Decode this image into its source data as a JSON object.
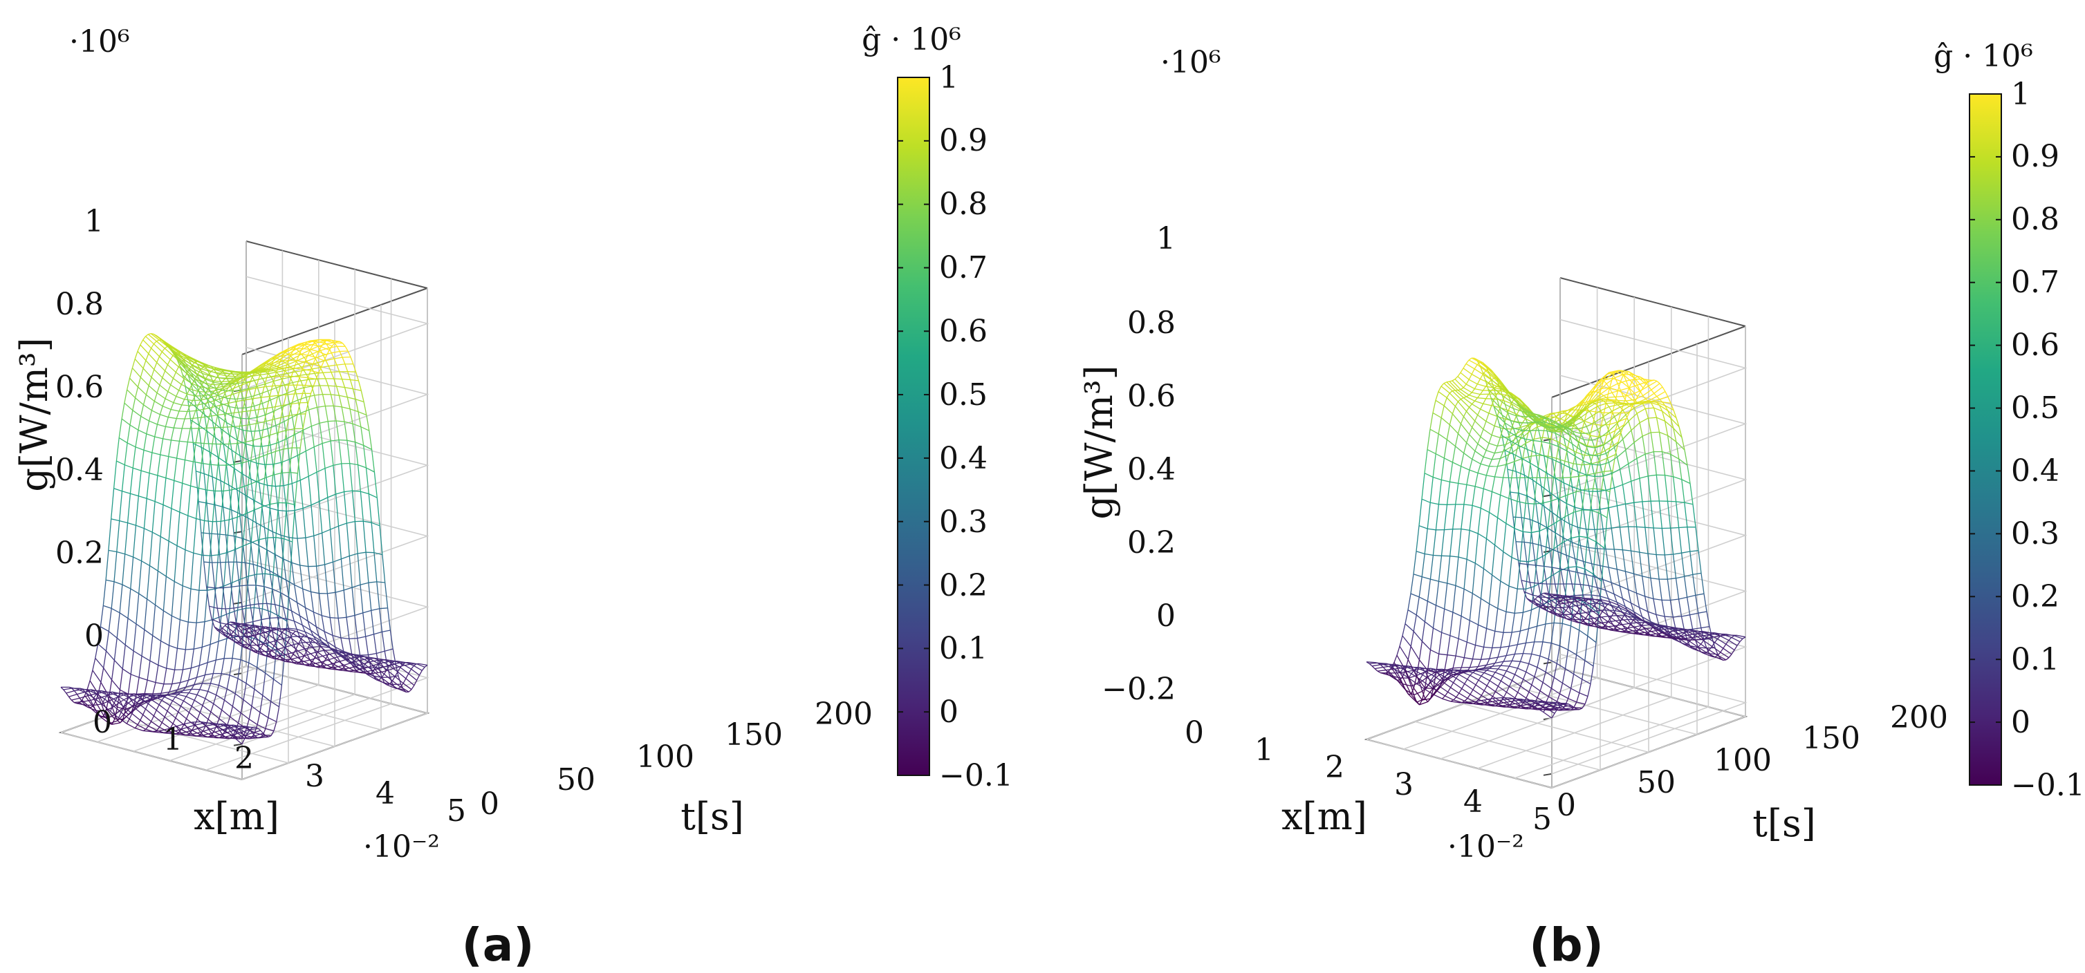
{
  "figure": {
    "panel_labels": [
      "(a)",
      "(b)"
    ]
  },
  "chart_data": [
    {
      "type": "surface",
      "panel": "(a)",
      "title": "",
      "xlabel": "x[m]",
      "ylabel": "t[s]",
      "zlabel": "g[W/m³]",
      "x_scale_label": "·10⁻²",
      "z_scale_label": "·10⁶",
      "x_ticks": [
        "0",
        "1",
        "2",
        "3",
        "4",
        "5"
      ],
      "t_ticks": [
        "0",
        "50",
        "100",
        "150",
        "200"
      ],
      "z_ticks": [
        "0",
        "0.2",
        "0.4",
        "0.6",
        "0.8",
        "1"
      ],
      "xlim": [
        0,
        5
      ],
      "tlim": [
        0,
        200
      ],
      "zlim": [
        -0.1,
        1.1
      ],
      "surface_peak": 1.03,
      "surface_min": -0.12,
      "colorbar": {
        "label": "ĝ · 10⁶",
        "ticks": [
          "−0.1",
          "0",
          "0.1",
          "0.2",
          "0.3",
          "0.4",
          "0.5",
          "0.6",
          "0.7",
          "0.8",
          "0.9",
          "1"
        ],
        "range": [
          -0.1,
          1.0
        ],
        "colormap": "viridis"
      }
    },
    {
      "type": "surface",
      "panel": "(b)",
      "title": "",
      "xlabel": "x[m]",
      "ylabel": "t[s]",
      "zlabel": "g[W/m³]",
      "x_scale_label": "·10⁻²",
      "z_scale_label": "·10⁶",
      "x_ticks": [
        "0",
        "1",
        "2",
        "3",
        "4",
        "5"
      ],
      "t_ticks": [
        "0",
        "50",
        "100",
        "150",
        "200"
      ],
      "z_ticks": [
        "−0.2",
        "0",
        "0.2",
        "0.4",
        "0.6",
        "0.8",
        "1"
      ],
      "xlim": [
        0,
        5
      ],
      "tlim": [
        0,
        200
      ],
      "zlim": [
        -0.25,
        1.15
      ],
      "surface_peak": 1.07,
      "surface_min": -0.22,
      "colorbar": {
        "label": "ĝ · 10⁶",
        "ticks": [
          "−0.1",
          "0",
          "0.1",
          "0.2",
          "0.3",
          "0.4",
          "0.5",
          "0.6",
          "0.7",
          "0.8",
          "0.9",
          "1"
        ],
        "range": [
          -0.1,
          1.0
        ],
        "colormap": "viridis"
      }
    }
  ]
}
